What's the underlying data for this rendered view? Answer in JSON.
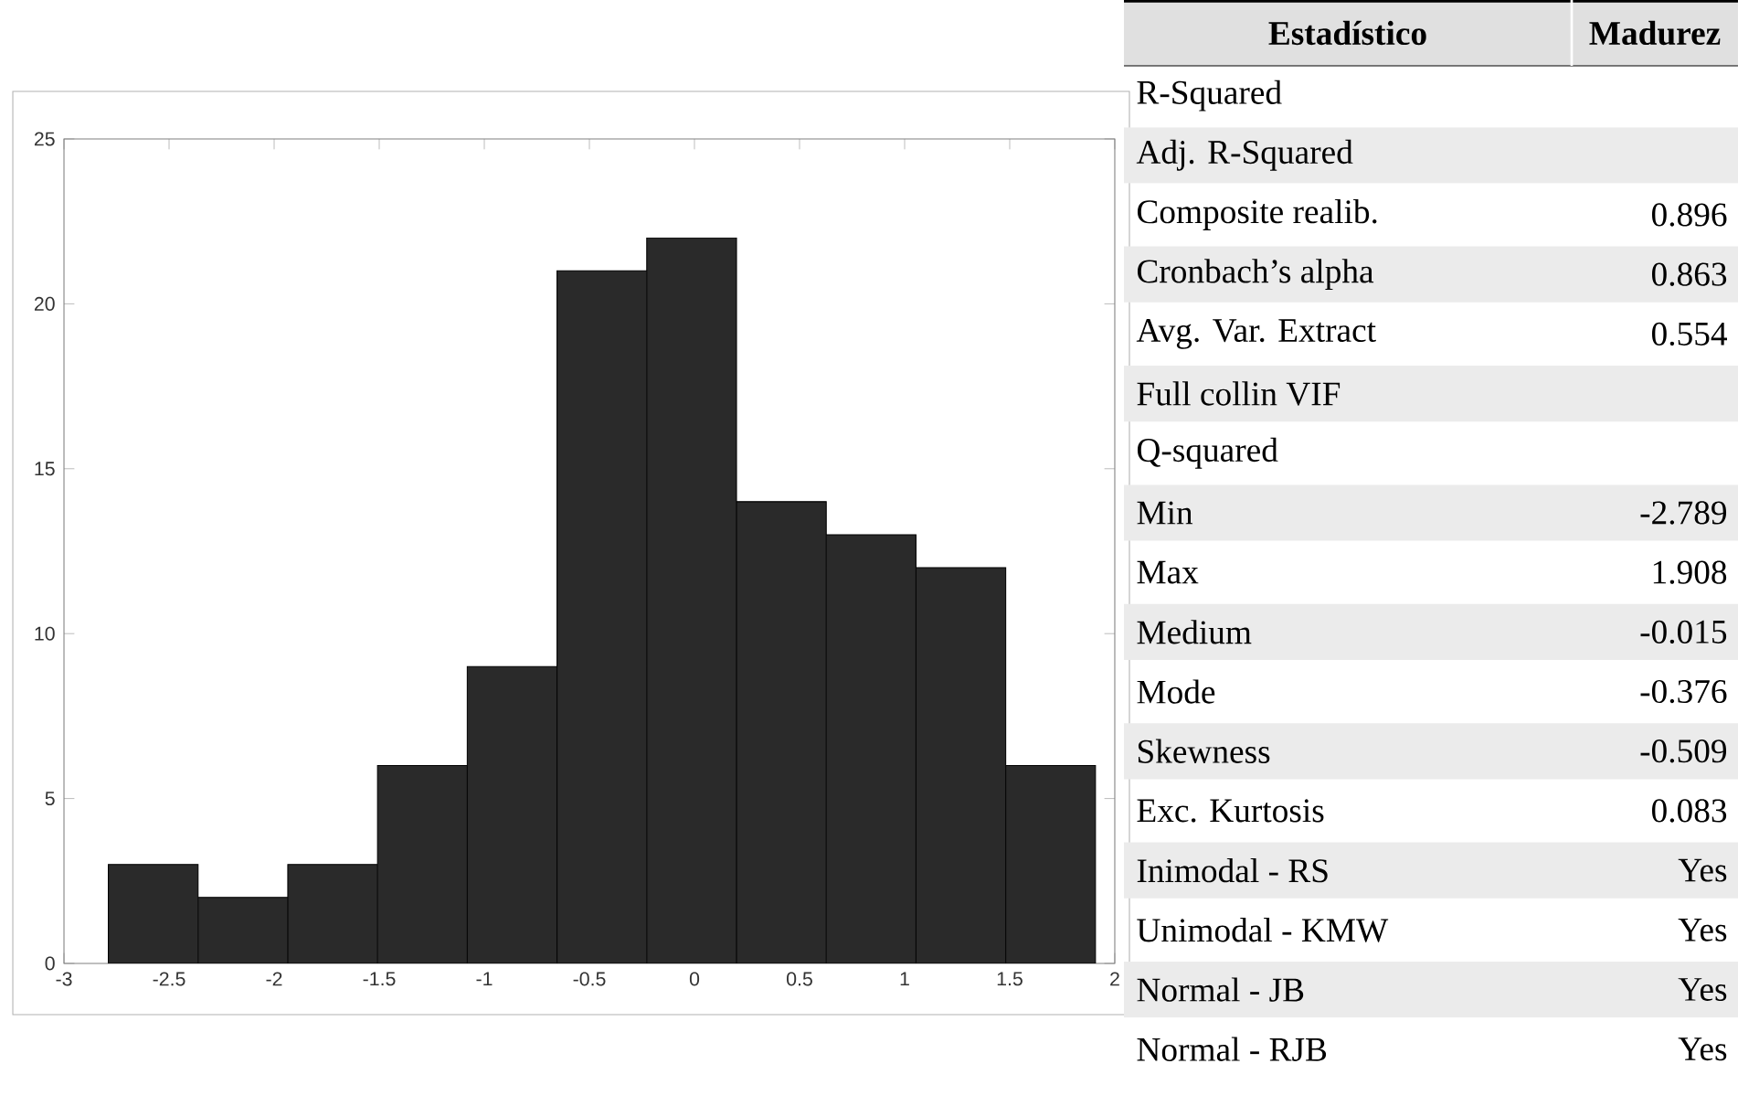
{
  "chart_data": [
    {
      "type": "histogram",
      "bins": [
        -2.789,
        -2.362,
        -1.935,
        -1.508,
        -1.081,
        -0.654,
        -0.227,
        0.2,
        0.627,
        1.054,
        1.481,
        1.908
      ],
      "values": [
        3,
        2,
        3,
        6,
        9,
        21,
        22,
        14,
        13,
        12,
        6
      ],
      "color": "#2a2a2a",
      "xlim": [
        -3,
        2
      ],
      "ylim": [
        0,
        25
      ],
      "xticks": [
        -3,
        -2.5,
        -2,
        -1.5,
        -1,
        -0.5,
        0,
        0.5,
        1,
        1.5,
        2
      ],
      "yticks": [
        0,
        5,
        10,
        15,
        20,
        25
      ],
      "grid": false
    },
    {
      "type": "other",
      "annotations": [
        "Estadístico",
        "Madurez"
      ],
      "categories": [
        "R-Squared",
        "Adj. R-Squared",
        "Composite realib.",
        "Cronbach’s alpha",
        "Avg. Var. Extract",
        "Full collin VIF",
        "Q-squared",
        "Min",
        "Max",
        "Medium",
        "Mode",
        "Skewness",
        "Exc. Kurtosis",
        "Inimodal - RS",
        "Unimodal - KMW",
        "Normal - JB",
        "Normal - RJB"
      ],
      "value_labels": [
        null,
        null,
        "0.896",
        "0.863",
        "0.554",
        null,
        null,
        "-2.789",
        "1.908",
        "-0.015",
        "-0.376",
        "-0.509",
        "0.083",
        "Yes",
        "Yes",
        "Yes",
        "Yes"
      ]
    }
  ]
}
